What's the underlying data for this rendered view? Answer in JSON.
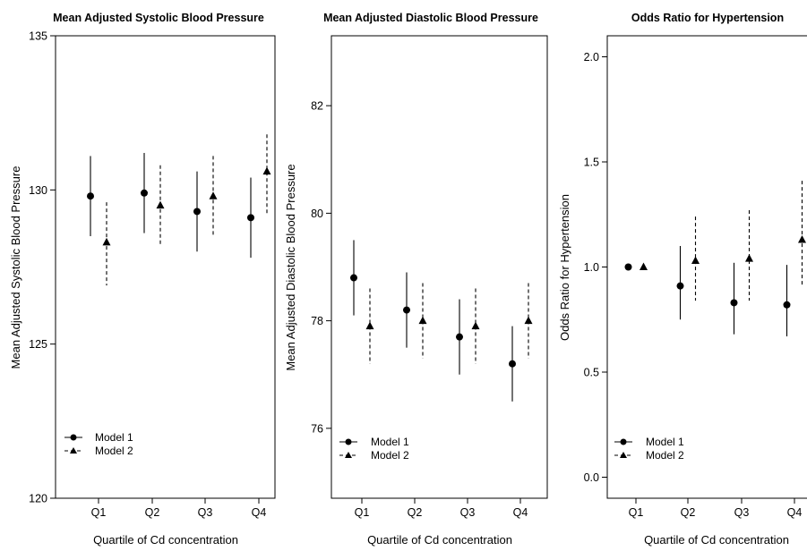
{
  "chart_data": [
    {
      "type": "scatter",
      "title": "Mean Adjusted Systolic Blood Pressure",
      "xlabel": "Quartile of Cd concentration",
      "ylabel": "Mean Adjusted Systolic Blood Pressure",
      "categories": [
        "Q1",
        "Q2",
        "Q3",
        "Q4"
      ],
      "ylim": [
        120,
        135
      ],
      "yticks": [
        "120",
        "125",
        "130",
        "135"
      ],
      "series": [
        {
          "name": "Model 1",
          "marker": "circle",
          "line": "solid",
          "values": [
            129.8,
            129.9,
            129.3,
            129.1
          ],
          "lower": [
            128.5,
            128.6,
            128.0,
            127.8
          ],
          "upper": [
            131.1,
            131.2,
            130.6,
            130.4
          ]
        },
        {
          "name": "Model 2",
          "marker": "triangle",
          "line": "dashed",
          "values": [
            128.3,
            129.5,
            129.8,
            130.6
          ],
          "lower": [
            126.9,
            128.2,
            128.5,
            129.2
          ],
          "upper": [
            129.6,
            130.8,
            131.1,
            131.8
          ]
        }
      ],
      "legend_position": "bottom-left"
    },
    {
      "type": "scatter",
      "title": "Mean Adjusted Diastolic Blood Pressure",
      "xlabel": "Quartile of Cd concentration",
      "ylabel": "Mean Adjusted Diastolic Blood Pressure",
      "categories": [
        "Q1",
        "Q2",
        "Q3",
        "Q4"
      ],
      "ylim": [
        74.7,
        83.3
      ],
      "yticks": [
        "76",
        "78",
        "80",
        "82"
      ],
      "series": [
        {
          "name": "Model 1",
          "marker": "circle",
          "line": "solid",
          "values": [
            78.8,
            78.2,
            77.7,
            77.2
          ],
          "lower": [
            78.1,
            77.5,
            77.0,
            76.5
          ],
          "upper": [
            79.5,
            78.9,
            78.4,
            77.9
          ]
        },
        {
          "name": "Model 2",
          "marker": "triangle",
          "line": "dashed",
          "values": [
            77.9,
            78.0,
            77.9,
            78.0
          ],
          "lower": [
            77.2,
            77.3,
            77.2,
            77.3
          ],
          "upper": [
            78.6,
            78.7,
            78.6,
            78.7
          ]
        }
      ],
      "legend_position": "bottom-left"
    },
    {
      "type": "scatter",
      "title": "Odds Ratio for Hypertension",
      "xlabel": "Quartile of Cd concentration",
      "ylabel": "Odds Ratio for Hypertension",
      "categories": [
        "Q1",
        "Q2",
        "Q3",
        "Q4"
      ],
      "ylim": [
        -0.1,
        2.1
      ],
      "yticks": [
        "0.0",
        "0.5",
        "1.0",
        "1.5",
        "2.0"
      ],
      "series": [
        {
          "name": "Model 1",
          "marker": "circle",
          "line": "solid",
          "values": [
            1.0,
            0.91,
            0.83,
            0.82
          ],
          "lower": [
            1.0,
            0.75,
            0.68,
            0.67
          ],
          "upper": [
            1.0,
            1.1,
            1.02,
            1.01
          ]
        },
        {
          "name": "Model 2",
          "marker": "triangle",
          "line": "dashed",
          "values": [
            1.0,
            1.03,
            1.04,
            1.13
          ],
          "lower": [
            1.0,
            0.84,
            0.84,
            0.91
          ],
          "upper": [
            1.0,
            1.24,
            1.27,
            1.41
          ]
        }
      ],
      "legend_position": "bottom-left"
    }
  ]
}
